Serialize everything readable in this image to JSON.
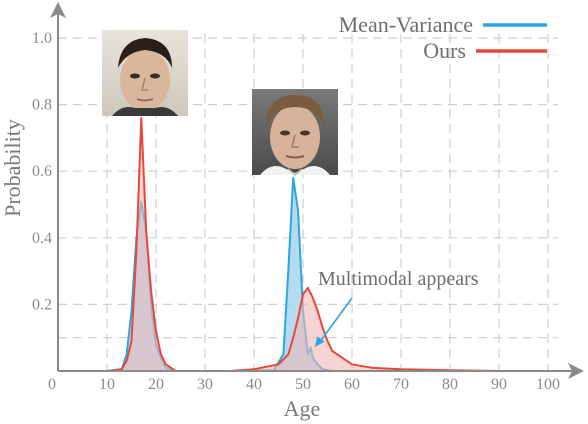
{
  "chart_data": {
    "type": "area",
    "xlabel": "Age",
    "ylabel": "Probability",
    "xlim": [
      0,
      100
    ],
    "ylim": [
      0,
      1.0
    ],
    "x_ticks": [
      0,
      10,
      20,
      30,
      40,
      50,
      60,
      70,
      80,
      90,
      100
    ],
    "y_ticks": [
      0.2,
      0.4,
      0.6,
      0.8,
      1.0
    ],
    "grid": true,
    "legend_position": "top-right",
    "series": [
      {
        "name": "Mean-Variance",
        "color": "#2aa6e4",
        "fill": "#9ccfe9",
        "points": [
          [
            0,
            0
          ],
          [
            10,
            0
          ],
          [
            13,
            0.005
          ],
          [
            14,
            0.05
          ],
          [
            15,
            0.18
          ],
          [
            16,
            0.4
          ],
          [
            17,
            0.51
          ],
          [
            18,
            0.42
          ],
          [
            19,
            0.2
          ],
          [
            20,
            0.08
          ],
          [
            21,
            0.04
          ],
          [
            22,
            0.01
          ],
          [
            24,
            0
          ],
          [
            35,
            0
          ],
          [
            44,
            0.002
          ],
          [
            46,
            0.05
          ],
          [
            47,
            0.3
          ],
          [
            48,
            0.58
          ],
          [
            49,
            0.48
          ],
          [
            50,
            0.18
          ],
          [
            51,
            0.05
          ],
          [
            51.6,
            0.07
          ],
          [
            52,
            0.04
          ],
          [
            53,
            0.02
          ],
          [
            54,
            0.005
          ],
          [
            56,
            0
          ],
          [
            100,
            0
          ]
        ]
      },
      {
        "name": "Ours",
        "color": "#e8483a",
        "fill": "#f0b8b8",
        "points": [
          [
            0,
            0
          ],
          [
            10,
            0
          ],
          [
            13,
            0.005
          ],
          [
            14,
            0.03
          ],
          [
            15,
            0.09
          ],
          [
            16,
            0.36
          ],
          [
            17,
            0.76
          ],
          [
            18,
            0.42
          ],
          [
            19,
            0.24
          ],
          [
            20,
            0.12
          ],
          [
            21,
            0.05
          ],
          [
            22,
            0.02
          ],
          [
            24,
            0
          ],
          [
            35,
            0
          ],
          [
            40,
            0.005
          ],
          [
            45,
            0.02
          ],
          [
            47,
            0.05
          ],
          [
            48,
            0.1
          ],
          [
            49,
            0.16
          ],
          [
            50,
            0.23
          ],
          [
            51,
            0.25
          ],
          [
            52,
            0.22
          ],
          [
            53,
            0.18
          ],
          [
            54,
            0.13
          ],
          [
            55,
            0.09
          ],
          [
            56,
            0.06
          ],
          [
            58,
            0.04
          ],
          [
            60,
            0.02
          ],
          [
            64,
            0.01
          ],
          [
            70,
            0.005
          ],
          [
            80,
            0.002
          ],
          [
            90,
            0
          ],
          [
            100,
            0
          ]
        ]
      }
    ],
    "annotation": {
      "text": "Multimodal appears",
      "target": [
        52,
        0.06
      ]
    }
  },
  "photos": [
    {
      "icon": "young-face-photo",
      "near_x": 17
    },
    {
      "icon": "older-face-photo",
      "near_x": 49
    }
  ]
}
